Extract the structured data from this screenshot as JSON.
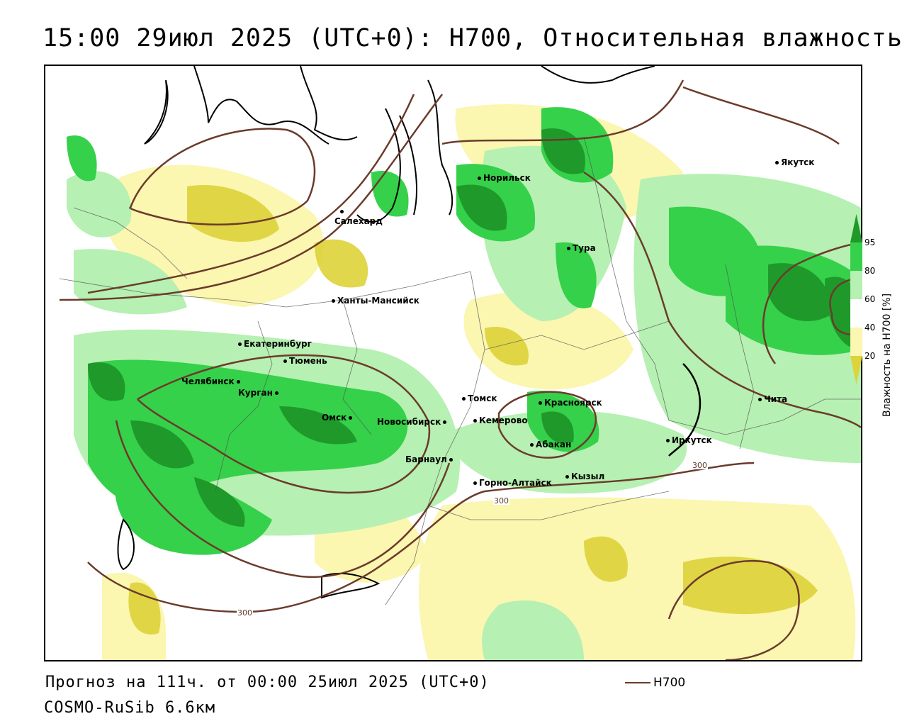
{
  "header": {
    "title": "15:00 29июл 2025 (UTC+0): H700, Относительная влажность"
  },
  "footer": {
    "forecast": "Прогноз на 111ч. от 00:00 25июл 2025 (UTC+0)",
    "model": "COSMO-RuSib 6.6км",
    "legend_line_label": "H700"
  },
  "scale": {
    "title": "Влажность на H700 [%]",
    "ticks": [
      "95",
      "80",
      "60",
      "40",
      "20"
    ],
    "colors": {
      "c95": "#1f9a2a",
      "c80": "#35d14a",
      "c60": "#b6f0b2",
      "c40": "#ffffff",
      "c20": "#fbf6b0",
      "c0": "#ddd33a"
    }
  },
  "contours": {
    "line_color": "#6b3b2b",
    "labels": [
      "300",
      "300",
      "300"
    ]
  },
  "cities": [
    {
      "id": "yakutsk",
      "name": "Якутск"
    },
    {
      "id": "norilsk",
      "name": "Норильск"
    },
    {
      "id": "salekhard",
      "name": "Салехард"
    },
    {
      "id": "tura",
      "name": "Тура"
    },
    {
      "id": "khanty",
      "name": "Ханты-Мансийск"
    },
    {
      "id": "ekb",
      "name": "Екатеринбург"
    },
    {
      "id": "tyumen",
      "name": "Тюмень"
    },
    {
      "id": "chelyabinsk",
      "name": "Челябинск"
    },
    {
      "id": "kurgan",
      "name": "Курган"
    },
    {
      "id": "omsk",
      "name": "Омск"
    },
    {
      "id": "novosibirsk",
      "name": "Новосибирск"
    },
    {
      "id": "tomsk",
      "name": "Томск"
    },
    {
      "id": "kemerovo",
      "name": "Кемерово"
    },
    {
      "id": "krasnoyarsk",
      "name": "Красноярск"
    },
    {
      "id": "abakan",
      "name": "Абакан"
    },
    {
      "id": "barnaul",
      "name": "Барнаул"
    },
    {
      "id": "gorno",
      "name": "Горно-Алтайск"
    },
    {
      "id": "kyzyl",
      "name": "Кызыл"
    },
    {
      "id": "irkutsk",
      "name": "Иркутск"
    },
    {
      "id": "chita",
      "name": "Чита"
    }
  ]
}
